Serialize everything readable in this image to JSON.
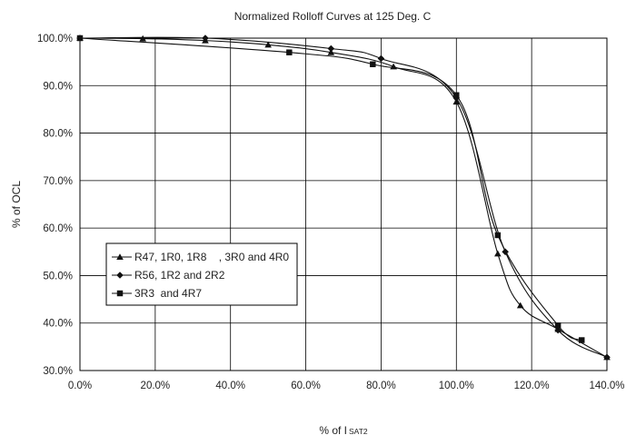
{
  "chart_data": {
    "type": "line",
    "title": "Normalized Rolloff Curves at 125 Deg. C",
    "xlabel": "% of I",
    "xlabel_subscript": "SAT2",
    "ylabel": "% of OCL",
    "xlim": [
      0,
      140
    ],
    "ylim": [
      30,
      100
    ],
    "x_ticks": [
      "0.0%",
      "20.0%",
      "40.0%",
      "60.0%",
      "80.0%",
      "100.0%",
      "120.0%",
      "140.0%"
    ],
    "y_ticks": [
      "30.0%",
      "40.0%",
      "50.0%",
      "60.0%",
      "70.0%",
      "80.0%",
      "90.0%",
      "100.0%"
    ],
    "grid": true,
    "legend_position": "lower-left",
    "series_color": "#111111",
    "series": [
      {
        "name": "R47, 1R0, 1R8    , 3R0 and 4R0",
        "marker": "triangle",
        "x": [
          0,
          16.7,
          33.3,
          50,
          66.7,
          83.3,
          100,
          111,
          117,
          127,
          140
        ],
        "y": [
          100,
          99.9,
          99.5,
          98.6,
          97.0,
          94.0,
          86.6,
          54.6,
          43.7,
          38.7,
          32.8
        ]
      },
      {
        "name": "R56, 1R2 and 2R2",
        "marker": "diamond",
        "x": [
          0,
          33.3,
          66.7,
          80,
          100,
          113,
          127,
          140
        ],
        "y": [
          100,
          100,
          97.8,
          95.7,
          87.4,
          55.0,
          38.5,
          32.8
        ]
      },
      {
        "name": "3R3  and 4R7",
        "marker": "square",
        "x": [
          0,
          55.6,
          77.8,
          100,
          111,
          127,
          133.3
        ],
        "y": [
          100,
          97.0,
          94.5,
          88.0,
          58.5,
          39.5,
          36.4
        ]
      }
    ]
  }
}
